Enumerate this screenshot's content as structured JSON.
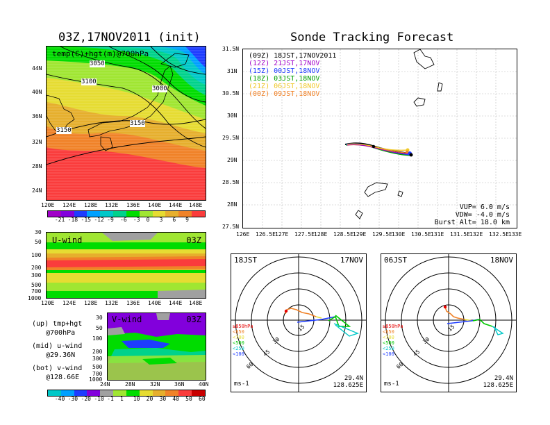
{
  "left_title": "03Z,17NOV2011 (init)",
  "right_title": "Sonde Tracking Forecast",
  "temp_panel": {
    "label": "temp(C)+hgt(m)@700hPa",
    "contours": [
      "3050",
      "3100",
      "3000",
      "3150",
      "3150"
    ],
    "lat_labels": [
      "44N",
      "40N",
      "36N",
      "32N",
      "28N",
      "24N"
    ],
    "lon_labels": [
      "120E",
      "124E",
      "128E",
      "132E",
      "136E",
      "140E",
      "144E",
      "148E"
    ]
  },
  "temp_colorbar": {
    "labels": [
      "-21",
      "-18",
      "-15",
      "-12",
      "-9",
      "-6",
      "-3",
      "0",
      "3",
      "6",
      "9"
    ],
    "colors": [
      "#a000c8",
      "#8200dc",
      "#1e3cff",
      "#00a0ff",
      "#00c8c8",
      "#00d28c",
      "#00dc00",
      "#a0e632",
      "#e6dc32",
      "#e6af2d",
      "#f08228",
      "#fa3c3c"
    ]
  },
  "uwind_panel": {
    "label": "U-wind",
    "time": "03Z",
    "levels": [
      "30",
      "50",
      "100",
      "200",
      "300",
      "500",
      "700",
      "1000"
    ],
    "lon_labels": [
      "120E",
      "124E",
      "128E",
      "132E",
      "136E",
      "140E",
      "144E",
      "148E"
    ]
  },
  "vwind_panel": {
    "label": "V-wind",
    "time": "03Z",
    "levels": [
      "30",
      "50",
      "100",
      "200",
      "300",
      "500",
      "700",
      "1000"
    ],
    "lat_labels": [
      "24N",
      "28N",
      "32N",
      "36N",
      "40N"
    ]
  },
  "notes": [
    {
      "line1": "(up) tmp+hgt",
      "line2": "@700hPa"
    },
    {
      "line1": "(mid) u-wind",
      "line2": "@29.36N"
    },
    {
      "line1": "(bot) v-wind",
      "line2": "@128.66E"
    }
  ],
  "wind_colorbar": {
    "labels": [
      "-40",
      "-30",
      "-20",
      "-10",
      "-1",
      "1",
      "10",
      "20",
      "30",
      "40",
      "50",
      "60"
    ],
    "colors": [
      "#00c8c8",
      "#00a0ff",
      "#1e3cff",
      "#8200dc",
      "#a0a0a0",
      "#a0e632",
      "#00dc00",
      "#e6dc32",
      "#e6af2d",
      "#f08228",
      "#fa3c3c",
      "#c80000"
    ]
  },
  "track_legend": [
    {
      "code": "(09Z)",
      "text": "18JST,17NOV2011",
      "color": "#000000"
    },
    {
      "code": "(12Z)",
      "text": "21JST,17NOV",
      "color": "#a000c8"
    },
    {
      "code": "(15Z)",
      "text": "00JST,18NOV",
      "color": "#1e3cff"
    },
    {
      "code": "(18Z)",
      "text": "03JST,18NOV",
      "color": "#00a000"
    },
    {
      "code": "(21Z)",
      "text": "06JST,18NOV",
      "color": "#f0c828"
    },
    {
      "code": "(00Z)",
      "text": "09JST,18NOV",
      "color": "#f08228"
    }
  ],
  "track_map": {
    "lat_labels": [
      "31.5N",
      "31N",
      "30.5N",
      "30N",
      "29.5N",
      "29N",
      "28.5N",
      "28N",
      "27.5N"
    ],
    "lon_labels": [
      "126E",
      "126.5E",
      "127E",
      "127.5E",
      "128E",
      "128.5E",
      "129E",
      "129.5E",
      "130E",
      "130.5E",
      "131E",
      "131.5E",
      "132E",
      "132.5E",
      "133E"
    ],
    "vup": "VUP= 6.0 m/s",
    "vdw": "VDW= -4.0 m/s",
    "burst": "Burst Alt= 18.0 km"
  },
  "hodo_left": {
    "time": "18JST",
    "date": "17NOV",
    "ring_labels": [
      "15",
      "30",
      "45",
      "60"
    ],
    "levels": [
      {
        "text": "≥850hPa",
        "color": "#e60000"
      },
      {
        "text": "<850",
        "color": "#f08228"
      },
      {
        "text": "<700",
        "color": "#e6dc32"
      },
      {
        "text": "<500",
        "color": "#00c800"
      },
      {
        "text": "<250",
        "color": "#00c8c8"
      },
      {
        "text": "<100",
        "color": "#1e3cff"
      }
    ],
    "unit": "ms-1",
    "lat": "29.4N",
    "lon": "128.625E"
  },
  "hodo_right": {
    "time": "06JST",
    "date": "18NOV",
    "ring_labels": [
      "15",
      "30",
      "45",
      "60"
    ],
    "levels": [
      {
        "text": "≥850hPa",
        "color": "#e60000"
      },
      {
        "text": "<850",
        "color": "#f08228"
      },
      {
        "text": "<700",
        "color": "#e6dc32"
      },
      {
        "text": "<500",
        "color": "#00c800"
      },
      {
        "text": "<250",
        "color": "#00c8c8"
      },
      {
        "text": "<100",
        "color": "#1e3cff"
      }
    ],
    "unit": "ms-1",
    "lat": "29.4N",
    "lon": "128.625E"
  }
}
